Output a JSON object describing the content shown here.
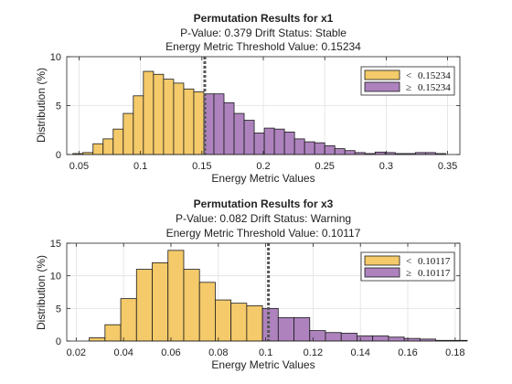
{
  "colors": {
    "below": "#f4ca6a",
    "above": "#ad82bd",
    "bar_edge": "#1a1a1a",
    "threshold_line": "#555555",
    "grid": "#e1e1e1",
    "axes": "#262626"
  },
  "chart_data": [
    {
      "type": "bar",
      "title": "Permutation Results for x1",
      "subtitle_1": "P-Value: 0.379 Drift Status: Stable",
      "subtitle_2": "Energy Metric Threshold Value: 0.15234",
      "xlabel": "Energy Metric Values",
      "ylabel": "Distribution (%)",
      "xlim": [
        0.04,
        0.36
      ],
      "ylim": [
        0,
        10
      ],
      "xticks": [
        "0.05",
        "0.1",
        "0.15",
        "0.2",
        "0.25",
        "0.3",
        "0.35"
      ],
      "xtick_values": [
        0.05,
        0.1,
        0.15,
        0.2,
        0.25,
        0.3,
        0.35
      ],
      "yticks": [
        "0",
        "5",
        "10"
      ],
      "ytick_values": [
        0,
        5,
        10
      ],
      "grid": true,
      "threshold": 0.15234,
      "legend_position": "top-right",
      "legend": [
        {
          "symbol": "<",
          "label": "0.15234",
          "series": "below"
        },
        {
          "symbol": "≥",
          "label": "0.15234",
          "series": "above"
        }
      ],
      "bin_start": 0.045,
      "bin_width": 0.0082,
      "values": [
        0.1,
        0.2,
        1.1,
        1.6,
        2.6,
        4.2,
        6.0,
        8.5,
        8.2,
        7.7,
        7.3,
        6.7,
        6.4,
        6.2,
        6.2,
        5.3,
        4.2,
        3.5,
        2.2,
        2.7,
        2.6,
        2.3,
        1.6,
        1.3,
        1.2,
        0.9,
        0.6,
        0.4,
        0.2,
        0.1,
        0.25,
        0.2,
        0.1,
        0.1,
        0.2,
        0.2,
        0.1
      ]
    },
    {
      "type": "bar",
      "title": "Permutation Results for x3",
      "subtitle_1": "P-Value: 0.082 Drift Status: Warning",
      "subtitle_2": "Energy Metric Threshold Value: 0.10117",
      "xlabel": "Energy Metric Values",
      "ylabel": "Distribution (%)",
      "xlim": [
        0.016,
        0.182
      ],
      "ylim": [
        0,
        15
      ],
      "xticks": [
        "0.02",
        "0.04",
        "0.06",
        "0.08",
        "0.1",
        "0.12",
        "0.14",
        "0.16",
        "0.18"
      ],
      "xtick_values": [
        0.02,
        0.04,
        0.06,
        0.08,
        0.1,
        0.12,
        0.14,
        0.16,
        0.18
      ],
      "yticks": [
        "0",
        "5",
        "10",
        "15"
      ],
      "ytick_values": [
        0,
        5,
        10,
        15
      ],
      "grid": true,
      "threshold": 0.10117,
      "legend_position": "top-right",
      "legend": [
        {
          "symbol": "<",
          "label": "0.10117",
          "series": "below"
        },
        {
          "symbol": "≥",
          "label": "0.10117",
          "series": "above"
        }
      ],
      "bin_start": 0.0255,
      "bin_width": 0.00665,
      "values": [
        0.5,
        2.5,
        6.5,
        11.0,
        12.0,
        13.9,
        11.0,
        9.0,
        6.3,
        5.8,
        5.4,
        5.0,
        3.6,
        3.6,
        1.6,
        1.3,
        1.2,
        0.8,
        0.8,
        0.6,
        0.4,
        0.3,
        0.1,
        0.1
      ]
    }
  ]
}
